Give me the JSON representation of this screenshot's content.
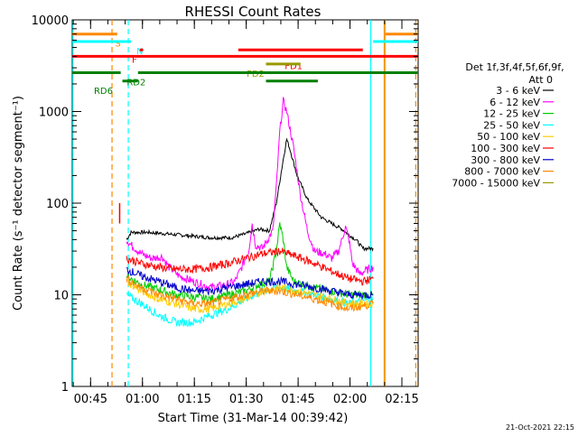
{
  "chart_data": {
    "type": "line",
    "title": "RHESSI Count Rates",
    "xlabel": "Start Time (31-Mar-14 00:39:42)",
    "ylabel": "Count Rate (s⁻¹ detector segment⁻¹)",
    "yscale": "log",
    "ylim": [
      1,
      10000
    ],
    "xlim_minutes": [
      0,
      100
    ],
    "yticks": [
      {
        "value": 1,
        "label": "1"
      },
      {
        "value": 10,
        "label": "10"
      },
      {
        "value": 100,
        "label": "100"
      },
      {
        "value": 1000,
        "label": "1000"
      },
      {
        "value": 10000,
        "label": "10000"
      }
    ],
    "xticks": [
      {
        "minute": 5.3,
        "label": "00:45"
      },
      {
        "minute": 20.3,
        "label": "01:00"
      },
      {
        "minute": 35.3,
        "label": "01:15"
      },
      {
        "minute": 50.3,
        "label": "01:30"
      },
      {
        "minute": 65.3,
        "label": "01:45"
      },
      {
        "minute": 80.3,
        "label": "02:00"
      },
      {
        "minute": 95.3,
        "label": "02:15"
      }
    ],
    "legend_header": [
      "Det 1f,3f,4f,5f,6f,9f,",
      "Att 0"
    ],
    "series": [
      {
        "name": "3 - 6 keV",
        "color": "#000000",
        "points": [
          [
            15.7,
            40
          ],
          [
            17,
            48
          ],
          [
            22,
            48
          ],
          [
            28,
            46
          ],
          [
            34,
            44
          ],
          [
            40,
            42
          ],
          [
            46,
            42
          ],
          [
            50,
            46
          ],
          [
            54,
            52
          ],
          [
            57,
            50
          ],
          [
            59,
            100
          ],
          [
            61,
            300
          ],
          [
            62,
            500
          ],
          [
            63,
            380
          ],
          [
            65,
            200
          ],
          [
            68,
            110
          ],
          [
            72,
            70
          ],
          [
            75,
            60
          ],
          [
            78,
            52
          ],
          [
            80,
            45
          ],
          [
            82,
            40
          ],
          [
            84,
            32
          ],
          [
            87,
            32
          ]
        ]
      },
      {
        "name": "6 - 12 keV",
        "color": "#ff00ff",
        "points": [
          [
            15.7,
            40
          ],
          [
            17,
            35
          ],
          [
            20,
            28
          ],
          [
            23,
            25
          ],
          [
            26,
            26
          ],
          [
            28,
            20
          ],
          [
            31,
            16
          ],
          [
            35,
            14
          ],
          [
            40,
            12
          ],
          [
            45,
            13
          ],
          [
            47,
            14
          ],
          [
            49,
            20
          ],
          [
            51,
            30
          ],
          [
            52,
            60
          ],
          [
            53,
            35
          ],
          [
            55,
            32
          ],
          [
            58,
            50
          ],
          [
            59,
            150
          ],
          [
            60,
            600
          ],
          [
            61,
            1300
          ],
          [
            62,
            1000
          ],
          [
            64,
            400
          ],
          [
            66,
            120
          ],
          [
            68,
            50
          ],
          [
            70,
            30
          ],
          [
            73,
            28
          ],
          [
            75,
            25
          ],
          [
            77,
            30
          ],
          [
            79,
            55
          ],
          [
            80,
            40
          ],
          [
            81,
            22
          ],
          [
            83,
            17
          ],
          [
            87,
            20
          ]
        ]
      },
      {
        "name": "12 - 25 keV",
        "color": "#00cc00",
        "points": [
          [
            15.7,
            16
          ],
          [
            20,
            13
          ],
          [
            30,
            10
          ],
          [
            40,
            9
          ],
          [
            50,
            11
          ],
          [
            54,
            13
          ],
          [
            57,
            14
          ],
          [
            59,
            30
          ],
          [
            60,
            60
          ],
          [
            61,
            40
          ],
          [
            62,
            20
          ],
          [
            64,
            14
          ],
          [
            70,
            12
          ],
          [
            80,
            10
          ],
          [
            87,
            10
          ]
        ]
      },
      {
        "name": "25 - 50 keV",
        "color": "#00ffff",
        "points": [
          [
            15.7,
            10
          ],
          [
            20,
            8
          ],
          [
            25,
            6
          ],
          [
            30,
            5
          ],
          [
            35,
            5
          ],
          [
            40,
            6
          ],
          [
            45,
            7
          ],
          [
            50,
            9
          ],
          [
            55,
            11
          ],
          [
            60,
            12
          ],
          [
            65,
            11
          ],
          [
            70,
            10
          ],
          [
            75,
            9
          ],
          [
            80,
            8
          ],
          [
            87,
            9
          ]
        ]
      },
      {
        "name": "50 - 100 keV",
        "color": "#ffcc00",
        "points": [
          [
            15.7,
            14
          ],
          [
            20,
            11
          ],
          [
            25,
            9
          ],
          [
            30,
            8
          ],
          [
            35,
            7
          ],
          [
            40,
            7
          ],
          [
            45,
            8
          ],
          [
            50,
            9
          ],
          [
            55,
            11
          ],
          [
            60,
            12
          ],
          [
            65,
            11
          ],
          [
            70,
            10
          ],
          [
            75,
            9
          ],
          [
            80,
            8
          ],
          [
            87,
            8
          ]
        ]
      },
      {
        "name": "100 - 300 keV",
        "color": "#ff0000",
        "points": [
          [
            15.7,
            25
          ],
          [
            20,
            22
          ],
          [
            25,
            20
          ],
          [
            30,
            19
          ],
          [
            35,
            19
          ],
          [
            40,
            20
          ],
          [
            45,
            22
          ],
          [
            50,
            25
          ],
          [
            55,
            28
          ],
          [
            60,
            30
          ],
          [
            65,
            26
          ],
          [
            70,
            22
          ],
          [
            75,
            18
          ],
          [
            80,
            15
          ],
          [
            84,
            14
          ],
          [
            87,
            15
          ]
        ]
      },
      {
        "name": "300 - 800 keV",
        "color": "#0000cc",
        "points": [
          [
            15.7,
            19
          ],
          [
            20,
            16
          ],
          [
            25,
            14
          ],
          [
            30,
            12
          ],
          [
            35,
            11
          ],
          [
            40,
            11
          ],
          [
            45,
            12
          ],
          [
            50,
            13
          ],
          [
            55,
            14
          ],
          [
            60,
            14
          ],
          [
            65,
            13
          ],
          [
            70,
            12
          ],
          [
            75,
            11
          ],
          [
            80,
            10
          ],
          [
            87,
            10
          ]
        ]
      },
      {
        "name": "800 - 7000 keV",
        "color": "#ff8800",
        "points": [
          [
            15.7,
            15
          ],
          [
            20,
            12
          ],
          [
            25,
            10
          ],
          [
            30,
            9
          ],
          [
            35,
            8
          ],
          [
            40,
            8
          ],
          [
            45,
            9
          ],
          [
            50,
            10
          ],
          [
            55,
            11
          ],
          [
            60,
            11
          ],
          [
            65,
            10
          ],
          [
            70,
            9
          ],
          [
            75,
            8
          ],
          [
            80,
            7
          ],
          [
            87,
            8
          ]
        ]
      },
      {
        "name": "7000 - 15000 keV",
        "color": "#999900",
        "points": []
      }
    ],
    "markers": [
      {
        "name": "red-spike",
        "color": "#ff0000",
        "minute": 13.7,
        "y_from": 60,
        "y_to": 100
      }
    ],
    "vlines": [
      {
        "minute": 0.2,
        "color": "#00ffff",
        "dashed": false
      },
      {
        "minute": 11.5,
        "color": "#ff8800",
        "dashed": true
      },
      {
        "minute": 16.2,
        "color": "#00ffff",
        "dashed": true
      },
      {
        "minute": 86.3,
        "color": "#00ffff",
        "dashed": false
      },
      {
        "minute": 90.2,
        "color": "#ff8800",
        "dashed": false
      },
      {
        "minute": 90.5,
        "color": "#cccc00",
        "dashed": false
      },
      {
        "minute": 99.3,
        "color": "#ff8800",
        "dashed": true
      }
    ],
    "flag_bars": [
      {
        "label": "S",
        "color": "#ff8800",
        "label_minute": 13.2,
        "value": 7000,
        "segments": [
          [
            0,
            13
          ],
          [
            90.5,
            100
          ]
        ]
      },
      {
        "label": "N",
        "color": "#00ffff",
        "label_minute": 19.5,
        "value": 5800,
        "segments": [
          [
            0,
            17
          ],
          [
            87,
            100
          ]
        ]
      },
      {
        "label": "F",
        "color": "#ff0000",
        "label_minute": 18.0,
        "value": 4700,
        "segments": [
          [
            19.5,
            20.5
          ],
          [
            48,
            84
          ]
        ]
      },
      {
        "label": "FD1",
        "color": "#ff0000",
        "label_minute": 64.0,
        "value": 4000,
        "segments": [
          [
            0,
            100
          ]
        ]
      },
      {
        "label": "FD2",
        "color": "#999900",
        "label_minute": 53.0,
        "value": 3300,
        "segments": [
          [
            56,
            66
          ]
        ]
      },
      {
        "label": "RD2",
        "color": "#008000",
        "label_minute": 18.5,
        "value": 2650,
        "segments": [
          [
            0,
            14
          ],
          [
            19,
            100
          ]
        ]
      },
      {
        "label": "RD6",
        "color": "#008000",
        "label_minute": 9.0,
        "value": 2150,
        "segments": [
          [
            14.5,
            19
          ],
          [
            56,
            71
          ]
        ]
      }
    ],
    "footer_date": "21-Oct-2021 22:15"
  }
}
